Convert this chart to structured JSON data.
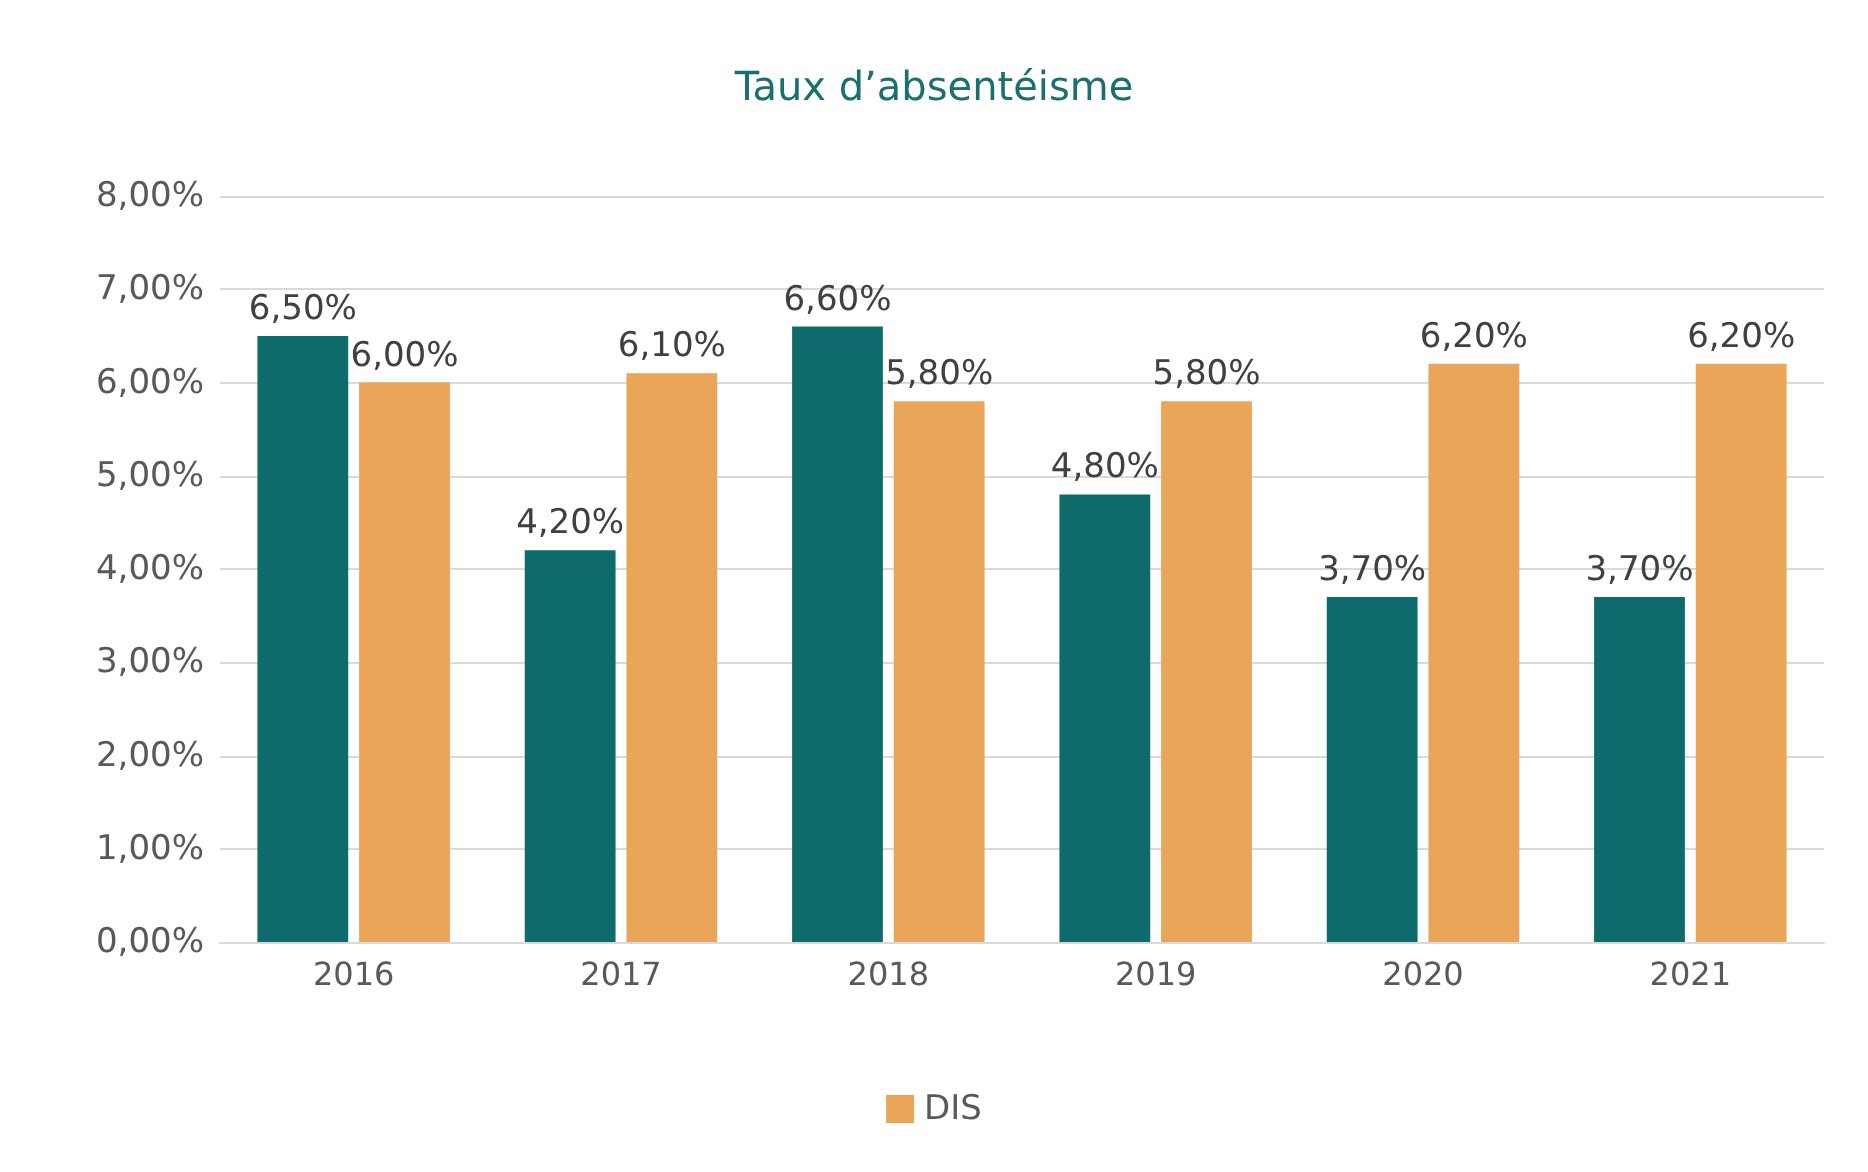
{
  "chart_data": {
    "type": "bar",
    "title": "Taux d’absentéisme",
    "categories": [
      "2016",
      "2017",
      "2018",
      "2019",
      "2020",
      "2021"
    ],
    "series": [
      {
        "color": "#0e6b6c",
        "values": [
          6.5,
          4.2,
          6.6,
          4.8,
          3.7,
          3.7
        ],
        "value_labels": [
          "6,50%",
          "4,20%",
          "6,60%",
          "4,80%",
          "3,70%",
          "3,70%"
        ]
      },
      {
        "name": "DIS",
        "color": "#e9a558",
        "values": [
          6.0,
          6.1,
          5.8,
          5.8,
          6.2,
          6.2
        ],
        "value_labels": [
          "6,00%",
          "6,10%",
          "5,80%",
          "5,80%",
          "6,20%",
          "6,20%"
        ]
      }
    ],
    "ylim": [
      0,
      8
    ],
    "yticks": [
      {
        "value": 0,
        "label": "0,00%"
      },
      {
        "value": 1,
        "label": "1,00%"
      },
      {
        "value": 2,
        "label": "2,00%"
      },
      {
        "value": 3,
        "label": "3,00%"
      },
      {
        "value": 4,
        "label": "4,00%"
      },
      {
        "value": 5,
        "label": "5,00%"
      },
      {
        "value": 6,
        "label": "6,00%"
      },
      {
        "value": 7,
        "label": "7,00%"
      },
      {
        "value": 8,
        "label": "8,00%"
      }
    ],
    "grid": "y",
    "legend": "bottom"
  }
}
